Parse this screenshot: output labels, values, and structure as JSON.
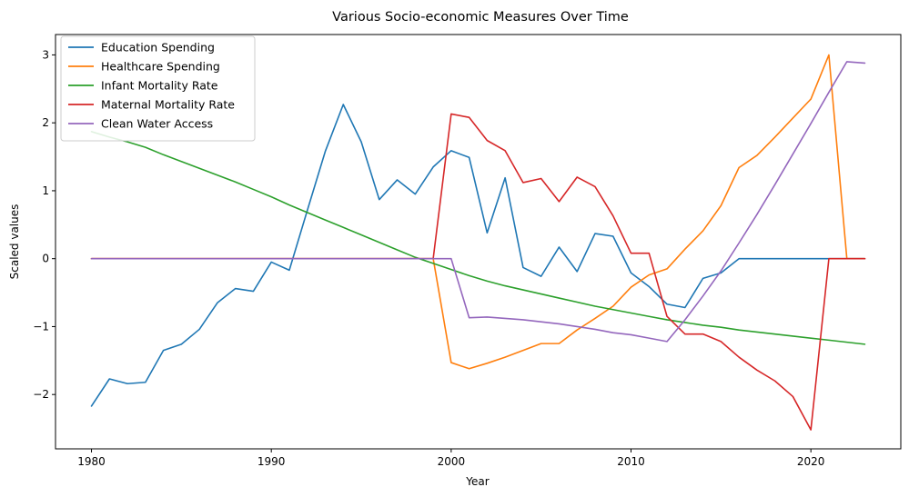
{
  "chart_data": {
    "type": "line",
    "title": "Various Socio-economic Measures Over Time",
    "xlabel": "Year",
    "ylabel": "Scaled values",
    "xlim": [
      1978,
      2025
    ],
    "ylim": [
      -2.8,
      3.3
    ],
    "xticks": [
      1980,
      1990,
      2000,
      2010,
      2020
    ],
    "yticks": [
      -2,
      -1,
      0,
      1,
      2,
      3
    ],
    "grid": false,
    "legend_position": "upper-left",
    "x": [
      1980,
      1981,
      1982,
      1983,
      1984,
      1985,
      1986,
      1987,
      1988,
      1989,
      1990,
      1991,
      1992,
      1993,
      1994,
      1995,
      1996,
      1997,
      1998,
      1999,
      2000,
      2001,
      2002,
      2003,
      2004,
      2005,
      2006,
      2007,
      2008,
      2009,
      2010,
      2011,
      2012,
      2013,
      2014,
      2015,
      2016,
      2017,
      2018,
      2019,
      2020,
      2021,
      2022,
      2023
    ],
    "series": [
      {
        "name": "Education Spending",
        "color": "#1f77b4",
        "values": [
          -2.17,
          -1.77,
          -1.84,
          -1.82,
          -1.35,
          -1.26,
          -1.04,
          -0.65,
          -0.44,
          -0.48,
          -0.05,
          -0.17,
          0.71,
          1.58,
          2.27,
          1.72,
          0.87,
          1.16,
          0.95,
          1.35,
          1.59,
          1.49,
          0.38,
          1.19,
          -0.13,
          -0.26,
          0.17,
          -0.19,
          0.37,
          0.33,
          -0.21,
          -0.41,
          -0.67,
          -0.72,
          -0.29,
          -0.21,
          0,
          0,
          0,
          0,
          0,
          0,
          0,
          0
        ]
      },
      {
        "name": "Healthcare Spending",
        "color": "#ff7f0e",
        "values": [
          0,
          0,
          0,
          0,
          0,
          0,
          0,
          0,
          0,
          0,
          0,
          0,
          0,
          0,
          0,
          0,
          0,
          0,
          0,
          0,
          -1.53,
          -1.62,
          -1.54,
          -1.45,
          -1.35,
          -1.25,
          -1.25,
          -1.05,
          -0.88,
          -0.7,
          -0.42,
          -0.24,
          -0.15,
          0.14,
          0.41,
          0.78,
          1.34,
          1.52,
          1.79,
          2.07,
          2.35,
          3.0,
          0,
          0
        ]
      },
      {
        "name": "Infant Mortality Rate",
        "color": "#2ca02c",
        "values": [
          1.87,
          1.79,
          1.72,
          1.64,
          1.53,
          1.43,
          1.33,
          1.23,
          1.13,
          1.02,
          0.91,
          0.79,
          0.68,
          0.57,
          0.46,
          0.35,
          0.24,
          0.13,
          0.02,
          -0.07,
          -0.16,
          -0.25,
          -0.33,
          -0.4,
          -0.46,
          -0.52,
          -0.58,
          -0.64,
          -0.7,
          -0.75,
          -0.8,
          -0.85,
          -0.9,
          -0.94,
          -0.98,
          -1.01,
          -1.05,
          -1.08,
          -1.11,
          -1.14,
          -1.17,
          -1.2,
          -1.23,
          -1.26
        ]
      },
      {
        "name": "Maternal Mortality Rate",
        "color": "#d62728",
        "values": [
          0,
          0,
          0,
          0,
          0,
          0,
          0,
          0,
          0,
          0,
          0,
          0,
          0,
          0,
          0,
          0,
          0,
          0,
          0,
          0,
          2.13,
          2.08,
          1.74,
          1.59,
          1.12,
          1.18,
          0.84,
          1.2,
          1.06,
          0.63,
          0.08,
          0.08,
          -0.85,
          -1.11,
          -1.11,
          -1.22,
          -1.45,
          -1.64,
          -1.8,
          -2.03,
          -2.52,
          0,
          0,
          0
        ]
      },
      {
        "name": "Clean Water Access",
        "color": "#9467bd",
        "values": [
          0,
          0,
          0,
          0,
          0,
          0,
          0,
          0,
          0,
          0,
          0,
          0,
          0,
          0,
          0,
          0,
          0,
          0,
          0,
          0,
          0,
          -0.87,
          -0.86,
          -0.88,
          -0.9,
          -0.93,
          -0.96,
          -1.0,
          -1.04,
          -1.09,
          -1.12,
          -1.17,
          -1.22,
          -0.9,
          -0.55,
          -0.18,
          0.23,
          0.65,
          1.09,
          1.54,
          1.99,
          2.45,
          2.9,
          2.88
        ]
      }
    ]
  }
}
